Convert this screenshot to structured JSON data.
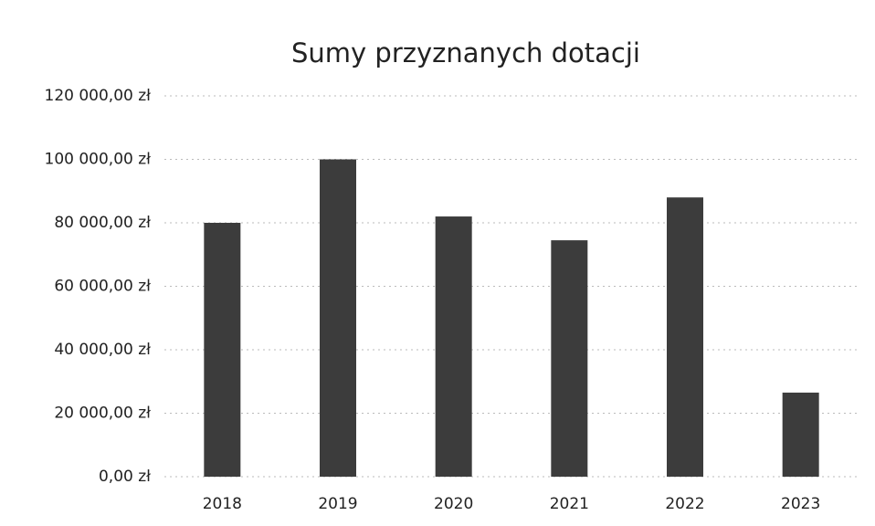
{
  "chart_data": {
    "type": "bar",
    "title": "Sumy przyznanych dotacji",
    "categories": [
      "2018",
      "2019",
      "2020",
      "2021",
      "2022",
      "2023"
    ],
    "values": [
      80000,
      100000,
      82000,
      74500,
      88000,
      26500
    ],
    "color": "#3c3c3c",
    "ylim": [
      0,
      120000
    ],
    "yticks": [
      {
        "value": 0,
        "label": "0,00 zł"
      },
      {
        "value": 20000,
        "label": "20 000,00 zł"
      },
      {
        "value": 40000,
        "label": "40 000,00 zł"
      },
      {
        "value": 60000,
        "label": "60 000,00 zł"
      },
      {
        "value": 80000,
        "label": "80 000,00 zł"
      },
      {
        "value": 100000,
        "label": "100 000,00 zł"
      },
      {
        "value": 120000,
        "label": "120 000,00 zł"
      }
    ],
    "grid": true
  }
}
